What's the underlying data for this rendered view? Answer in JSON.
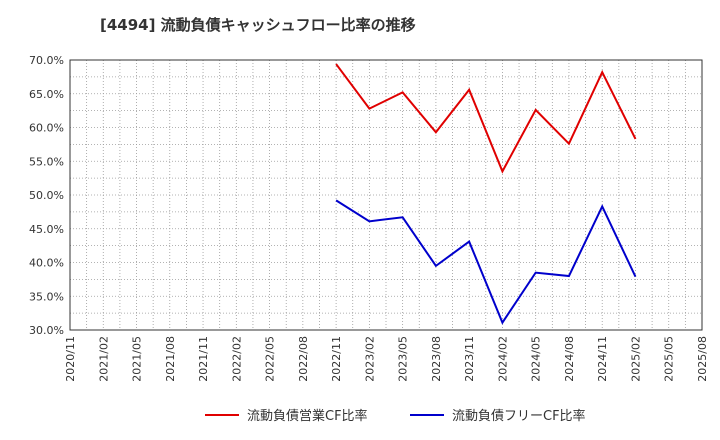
{
  "chart_data": {
    "type": "line",
    "title": "[4494]  流動負債キャッシュフロー比率の推移",
    "xlabel": "",
    "ylabel": "",
    "ylim": [
      30,
      70
    ],
    "y_ticks": [
      "70.0%",
      "65.0%",
      "60.0%",
      "55.0%",
      "50.0%",
      "45.0%",
      "40.0%",
      "35.0%",
      "30.0%"
    ],
    "y_tick_values": [
      70,
      65,
      60,
      55,
      50,
      45,
      40,
      35,
      30
    ],
    "x_ticks": [
      "2020/11",
      "2021/02",
      "2021/05",
      "2021/08",
      "2021/11",
      "2022/02",
      "2022/05",
      "2022/08",
      "2022/11",
      "2023/02",
      "2023/05",
      "2023/08",
      "2023/11",
      "2024/02",
      "2024/05",
      "2024/08",
      "2024/11",
      "2025/02",
      "2025/05",
      "2025/08"
    ],
    "grid": true,
    "legend_position": "bottom",
    "series": [
      {
        "name": "流動負債営業CF比率",
        "color": "#e00000",
        "x": [
          "2022/11",
          "2023/02",
          "2023/05",
          "2023/08",
          "2023/11",
          "2024/02",
          "2024/05",
          "2024/08",
          "2024/11",
          "2025/02"
        ],
        "values": [
          69.4,
          62.8,
          65.2,
          59.3,
          65.6,
          53.5,
          62.6,
          57.6,
          68.2,
          58.3
        ]
      },
      {
        "name": "流動負債フリーCF比率",
        "color": "#0000cc",
        "x": [
          "2022/11",
          "2023/02",
          "2023/05",
          "2023/08",
          "2023/11",
          "2024/02",
          "2024/05",
          "2024/08",
          "2024/11",
          "2025/02"
        ],
        "values": [
          49.2,
          46.1,
          46.7,
          39.5,
          43.1,
          31.1,
          38.5,
          38.0,
          48.3,
          37.9
        ]
      }
    ]
  }
}
